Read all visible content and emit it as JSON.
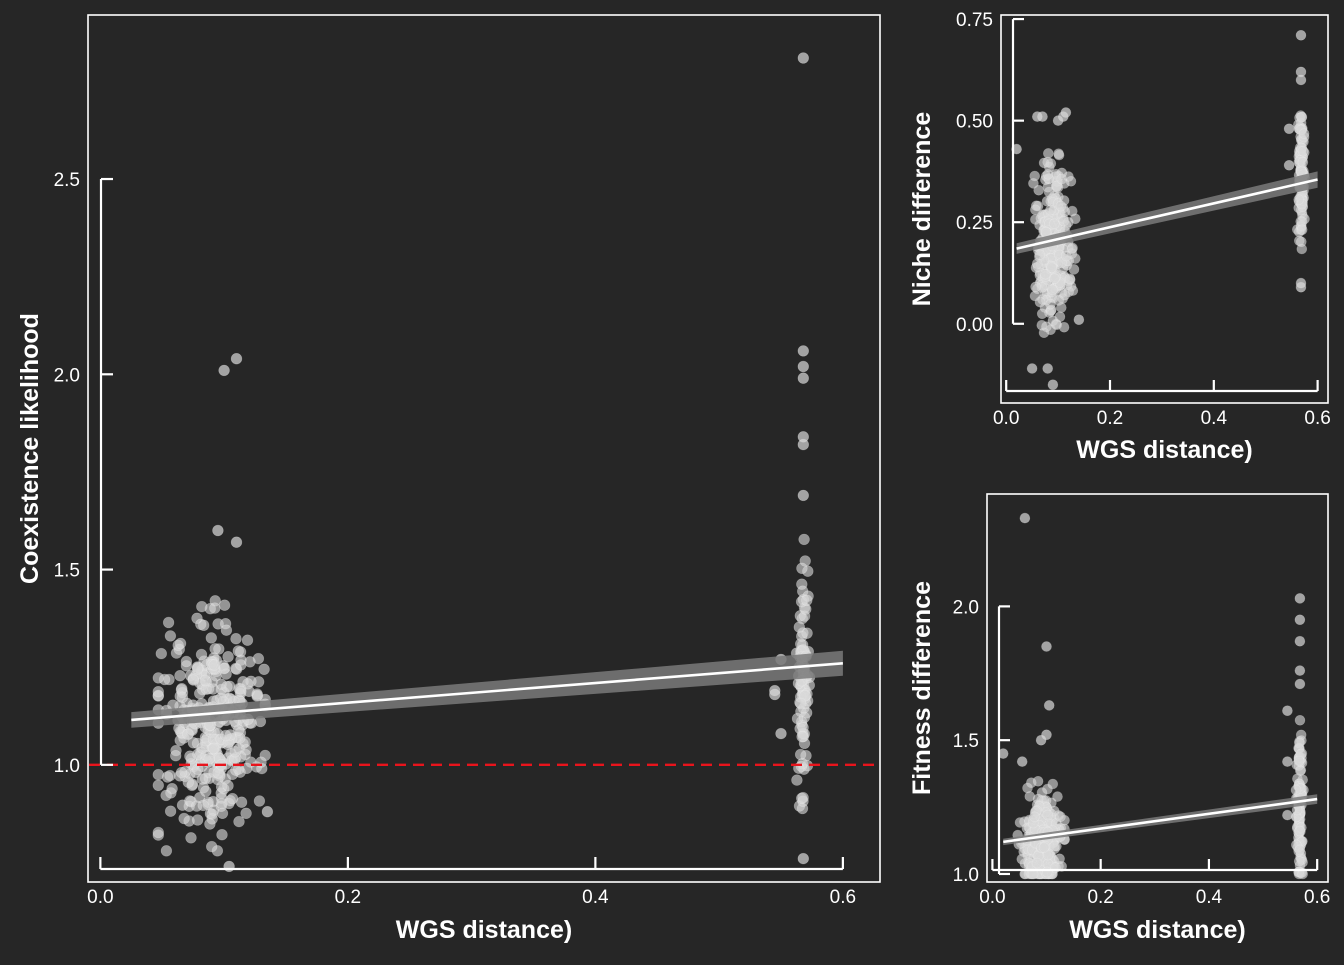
{
  "colors": {
    "background": "#262626",
    "axis": "#ffffff",
    "points": "#d9d9d9",
    "fit_line": "#ffffff",
    "confidence_band": "#7a7a7a",
    "reference_line": "#e8141c"
  },
  "chart_data": [
    {
      "id": "coexistence",
      "type": "scatter",
      "xlabel": "WGS distance)",
      "ylabel": "Coexistence likelihood",
      "xlim": [
        -0.01,
        0.63
      ],
      "ylim": [
        0.7,
        2.92
      ],
      "xticks": [
        0.0,
        0.2,
        0.4,
        0.6
      ],
      "xtick_labels": [
        "0.0",
        "0.2",
        "0.4",
        "0.6"
      ],
      "yticks": [
        1.0,
        1.5,
        2.0,
        2.5
      ],
      "ytick_labels": [
        "1.0",
        "1.5",
        "2.0",
        "2.5"
      ],
      "fit": {
        "x": [
          0.025,
          0.6
        ],
        "y": [
          1.115,
          1.26
        ],
        "band": [
          0.02,
          0.032
        ]
      },
      "reference_line": {
        "y": 1.0,
        "style": "dashed"
      },
      "clusters": [
        {
          "x_center": 0.09,
          "x_spread": 0.024,
          "n": 360,
          "y_mean": 1.1,
          "y_sd": 0.14,
          "y_min": 0.78,
          "y_max": 1.42
        },
        {
          "x_center": 0.568,
          "x_spread": 0.003,
          "n": 95,
          "y_mean": 1.22,
          "y_sd": 0.14,
          "y_min": 0.87,
          "y_max": 1.62
        }
      ],
      "outliers": [
        [
          0.1,
          2.01
        ],
        [
          0.11,
          2.04
        ],
        [
          0.568,
          2.81
        ],
        [
          0.568,
          2.06
        ],
        [
          0.568,
          2.02
        ],
        [
          0.568,
          1.99
        ],
        [
          0.568,
          1.84
        ],
        [
          0.568,
          1.82
        ],
        [
          0.568,
          1.69
        ],
        [
          0.568,
          0.76
        ],
        [
          0.104,
          0.74
        ],
        [
          0.095,
          1.6
        ],
        [
          0.11,
          1.57
        ],
        [
          0.545,
          1.19
        ],
        [
          0.545,
          1.18
        ],
        [
          0.55,
          1.08
        ],
        [
          0.55,
          1.27
        ],
        [
          0.135,
          0.88
        ]
      ]
    },
    {
      "id": "niche",
      "type": "scatter",
      "xlabel": "WGS distance)",
      "ylabel": "Niche difference",
      "xlim": [
        -0.01,
        0.62
      ],
      "ylim": [
        -0.195,
        0.76
      ],
      "xticks": [
        0.0,
        0.2,
        0.4,
        0.6
      ],
      "xtick_labels": [
        "0.0",
        "0.2",
        "0.4",
        "0.6"
      ],
      "yticks": [
        0.0,
        0.25,
        0.5,
        0.75
      ],
      "ytick_labels": [
        "0.00",
        "0.25",
        "0.50",
        "0.75"
      ],
      "fit": {
        "x": [
          0.02,
          0.6
        ],
        "y": [
          0.185,
          0.355
        ],
        "band": [
          0.013,
          0.02
        ]
      },
      "clusters": [
        {
          "x_center": 0.09,
          "x_spread": 0.024,
          "n": 300,
          "y_mean": 0.2,
          "y_sd": 0.09,
          "y_min": -0.05,
          "y_max": 0.46
        },
        {
          "x_center": 0.568,
          "x_spread": 0.004,
          "n": 110,
          "y_mean": 0.36,
          "y_sd": 0.08,
          "y_min": 0.14,
          "y_max": 0.56
        }
      ],
      "outliers": [
        [
          0.06,
          0.51
        ],
        [
          0.07,
          0.51
        ],
        [
          0.1,
          0.5
        ],
        [
          0.11,
          0.51
        ],
        [
          0.115,
          0.52
        ],
        [
          0.02,
          0.43
        ],
        [
          0.09,
          -0.15
        ],
        [
          0.08,
          -0.11
        ],
        [
          0.05,
          -0.11
        ],
        [
          0.14,
          0.01
        ],
        [
          0.568,
          0.71
        ],
        [
          0.568,
          0.62
        ],
        [
          0.568,
          0.6
        ],
        [
          0.568,
          0.09
        ],
        [
          0.568,
          0.1
        ],
        [
          0.545,
          0.48
        ],
        [
          0.545,
          0.39
        ]
      ]
    },
    {
      "id": "fitness",
      "type": "scatter",
      "xlabel": "WGS distance)",
      "ylabel": "Fitness difference",
      "xlim": [
        -0.01,
        0.62
      ],
      "ylim": [
        0.97,
        2.42
      ],
      "xticks": [
        0.0,
        0.2,
        0.4,
        0.6
      ],
      "xtick_labels": [
        "0.0",
        "0.2",
        "0.4",
        "0.6"
      ],
      "yticks": [
        1.0,
        1.5,
        2.0
      ],
      "ytick_labels": [
        "1.0",
        "1.5",
        "2.0"
      ],
      "fit": {
        "x": [
          0.02,
          0.6
        ],
        "y": [
          1.12,
          1.28
        ],
        "band": [
          0.012,
          0.018
        ]
      },
      "clusters": [
        {
          "x_center": 0.09,
          "x_spread": 0.024,
          "n": 320,
          "y_mean": 1.11,
          "y_sd": 0.08,
          "y_min": 1.0,
          "y_max": 1.36
        },
        {
          "x_center": 0.568,
          "x_spread": 0.004,
          "n": 110,
          "y_mean": 1.25,
          "y_sd": 0.15,
          "y_min": 1.0,
          "y_max": 1.6
        }
      ],
      "outliers": [
        [
          0.06,
          2.33
        ],
        [
          0.1,
          1.85
        ],
        [
          0.105,
          1.63
        ],
        [
          0.1,
          1.52
        ],
        [
          0.09,
          1.5
        ],
        [
          0.02,
          1.45
        ],
        [
          0.055,
          1.42
        ],
        [
          0.568,
          2.03
        ],
        [
          0.568,
          1.95
        ],
        [
          0.568,
          1.87
        ],
        [
          0.568,
          1.76
        ],
        [
          0.568,
          1.71
        ],
        [
          0.545,
          1.61
        ],
        [
          0.545,
          1.42
        ],
        [
          0.545,
          1.22
        ]
      ]
    }
  ]
}
